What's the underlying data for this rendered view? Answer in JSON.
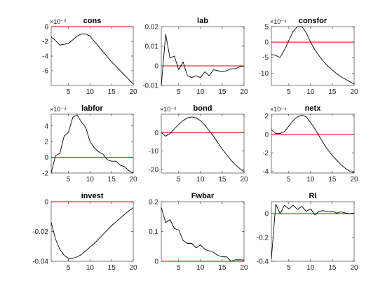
{
  "figure": {
    "axes_color": "#262626",
    "line_color": "#000000",
    "zero_line_color": "#e00000",
    "background": "#ffffff"
  },
  "chart_data": [
    {
      "type": "line",
      "title": "cons",
      "exponent": "×10⁻³",
      "xlim": [
        1,
        20
      ],
      "ylim": [
        -8,
        0
      ],
      "xticks": [
        5,
        10,
        15,
        20
      ],
      "yticks": [
        0,
        -2,
        -4,
        -6
      ],
      "grid": false,
      "zero_line": true,
      "series": [
        {
          "x": [
            1,
            2,
            3,
            4,
            5,
            6,
            7,
            8,
            9,
            10,
            11,
            12,
            13,
            14,
            15,
            16,
            17,
            18,
            19,
            20
          ],
          "values": [
            -1.4,
            -1.9,
            -2.5,
            -2.4,
            -2.3,
            -1.8,
            -1.3,
            -1.0,
            -1.0,
            -1.3,
            -2.0,
            -2.7,
            -3.4,
            -4.1,
            -4.8,
            -5.4,
            -6.0,
            -6.6,
            -7.2,
            -7.8
          ]
        }
      ]
    },
    {
      "type": "line",
      "title": "lab",
      "exponent": "",
      "xlim": [
        1,
        20
      ],
      "ylim": [
        -0.01,
        0.02
      ],
      "xticks": [
        5,
        10,
        15,
        20
      ],
      "yticks": [
        0.02,
        0.01,
        0,
        -0.01
      ],
      "grid": false,
      "zero_line": true,
      "series": [
        {
          "x": [
            1,
            2,
            3,
            4,
            5,
            6,
            7,
            8,
            9,
            10,
            11,
            12,
            13,
            14,
            15,
            16,
            17,
            18,
            19,
            20
          ],
          "values": [
            -0.01,
            0.016,
            0.004,
            0.005,
            -0.002,
            0.002,
            -0.005,
            -0.006,
            -0.005,
            -0.006,
            -0.003,
            -0.005,
            -0.002,
            -0.0025,
            -0.003,
            -0.0025,
            -0.0015,
            -0.0015,
            -0.0005,
            0.0
          ]
        }
      ]
    },
    {
      "type": "line",
      "title": "consfor",
      "exponent": "×10⁻⁴",
      "xlim": [
        1,
        20
      ],
      "ylim": [
        -14,
        5
      ],
      "xticks": [
        5,
        10,
        15,
        20
      ],
      "yticks": [
        5,
        0,
        -5,
        -10
      ],
      "grid": false,
      "zero_line": true,
      "series": [
        {
          "x": [
            1,
            2,
            3,
            4,
            5,
            6,
            7,
            8,
            9,
            10,
            11,
            12,
            13,
            14,
            15,
            16,
            17,
            18,
            19,
            20
          ],
          "values": [
            -4.0,
            -4.3,
            -5.0,
            -2.5,
            0.5,
            3.5,
            5.0,
            5.0,
            3.0,
            0.0,
            -2.5,
            -4.5,
            -6.3,
            -7.8,
            -9.0,
            -10.2,
            -11.2,
            -12.0,
            -12.8,
            -13.5
          ]
        }
      ]
    },
    {
      "type": "line",
      "title": "labfor",
      "exponent": "×10⁻⁴",
      "xlim": [
        1,
        20
      ],
      "ylim": [
        -2,
        5.5
      ],
      "xticks": [
        5,
        10,
        15,
        20
      ],
      "yticks": [
        4,
        2,
        0,
        -2
      ],
      "grid": false,
      "zero_line": true,
      "series": [
        {
          "x": [
            1,
            2,
            3,
            4,
            5,
            6,
            7,
            8,
            9,
            10,
            11,
            12,
            13,
            14,
            15,
            16,
            17,
            18,
            19,
            20
          ],
          "values": [
            -2.0,
            0.2,
            0.5,
            2.7,
            3.2,
            5.1,
            5.4,
            4.5,
            3.8,
            2.0,
            1.2,
            0.7,
            0.4,
            -0.3,
            -0.5,
            -0.5,
            -1.0,
            -1.2,
            -1.7,
            -2.0
          ]
        }
      ]
    },
    {
      "type": "line",
      "title": "bond",
      "exponent": "×10⁻³",
      "xlim": [
        1,
        20
      ],
      "ylim": [
        -22,
        10
      ],
      "xticks": [
        5,
        10,
        15,
        20
      ],
      "yticks": [
        0,
        -10,
        -20
      ],
      "grid": false,
      "zero_line": true,
      "series": [
        {
          "x": [
            1,
            2,
            3,
            4,
            5,
            6,
            7,
            8,
            9,
            10,
            11,
            12,
            13,
            14,
            15,
            16,
            17,
            18,
            19,
            20
          ],
          "values": [
            0.0,
            -2.0,
            -0.5,
            2.0,
            4.5,
            6.5,
            8.0,
            8.5,
            8.0,
            6.5,
            4.0,
            1.0,
            -2.0,
            -5.5,
            -9.0,
            -12.0,
            -15.0,
            -17.5,
            -19.5,
            -21.5
          ]
        }
      ]
    },
    {
      "type": "line",
      "title": "netx",
      "exponent": "×10⁻⁴",
      "xlim": [
        1,
        20
      ],
      "ylim": [
        -4.2,
        2.2
      ],
      "xticks": [
        5,
        10,
        15,
        20
      ],
      "yticks": [
        2,
        0,
        -2,
        -4
      ],
      "grid": false,
      "zero_line": true,
      "series": [
        {
          "x": [
            1,
            2,
            3,
            4,
            5,
            6,
            7,
            8,
            9,
            10,
            11,
            12,
            13,
            14,
            15,
            16,
            17,
            18,
            19,
            20
          ],
          "values": [
            0.5,
            0.1,
            0.1,
            0.3,
            0.9,
            1.5,
            1.9,
            2.1,
            1.9,
            1.3,
            0.6,
            -0.2,
            -1.0,
            -1.7,
            -2.3,
            -2.8,
            -3.3,
            -3.7,
            -4.0,
            -4.2
          ]
        }
      ]
    },
    {
      "type": "line",
      "title": "invest",
      "exponent": "",
      "xlim": [
        1,
        20
      ],
      "ylim": [
        -0.04,
        0
      ],
      "xticks": [
        5,
        10,
        15,
        20
      ],
      "yticks": [
        0,
        -0.02,
        -0.04
      ],
      "grid": false,
      "zero_line": true,
      "series": [
        {
          "x": [
            1,
            2,
            3,
            4,
            5,
            6,
            7,
            8,
            9,
            10,
            11,
            12,
            13,
            14,
            15,
            16,
            17,
            18,
            19,
            20
          ],
          "values": [
            -0.014,
            -0.025,
            -0.032,
            -0.036,
            -0.038,
            -0.038,
            -0.037,
            -0.0355,
            -0.033,
            -0.0305,
            -0.028,
            -0.025,
            -0.022,
            -0.019,
            -0.016,
            -0.0135,
            -0.011,
            -0.0085,
            -0.006,
            -0.004
          ]
        }
      ]
    },
    {
      "type": "line",
      "title": "Fwbar",
      "exponent": "",
      "xlim": [
        1,
        20
      ],
      "ylim": [
        0,
        0.2
      ],
      "xticks": [
        5,
        10,
        15,
        20
      ],
      "yticks": [
        0.2,
        0.1,
        0
      ],
      "grid": false,
      "zero_line": true,
      "series": [
        {
          "x": [
            1,
            2,
            3,
            4,
            5,
            6,
            7,
            8,
            9,
            10,
            11,
            12,
            13,
            14,
            15,
            16,
            17,
            18,
            19,
            20
          ],
          "values": [
            0.18,
            0.13,
            0.14,
            0.11,
            0.105,
            0.07,
            0.06,
            0.06,
            0.045,
            0.055,
            0.04,
            0.035,
            0.03,
            0.02,
            0.015,
            0.015,
            0.0,
            0.005,
            0.005,
            0.004
          ]
        }
      ]
    },
    {
      "type": "line",
      "title": "RI",
      "exponent": "",
      "xlim": [
        1,
        20
      ],
      "ylim": [
        -0.4,
        0.1
      ],
      "xticks": [
        5,
        10,
        15,
        20
      ],
      "yticks": [
        0,
        -0.2,
        -0.4
      ],
      "grid": false,
      "zero_line": true,
      "series": [
        {
          "x": [
            1,
            2,
            3,
            4,
            5,
            6,
            7,
            8,
            9,
            10,
            11,
            12,
            13,
            14,
            15,
            16,
            17,
            18,
            19,
            20
          ],
          "values": [
            -0.38,
            0.08,
            0.0,
            0.07,
            0.04,
            0.07,
            0.035,
            0.06,
            0.02,
            0.04,
            -0.01,
            0.02,
            0.025,
            0.015,
            0.02,
            0.005,
            0.015,
            0.005,
            0.0,
            0.005
          ]
        }
      ]
    }
  ]
}
